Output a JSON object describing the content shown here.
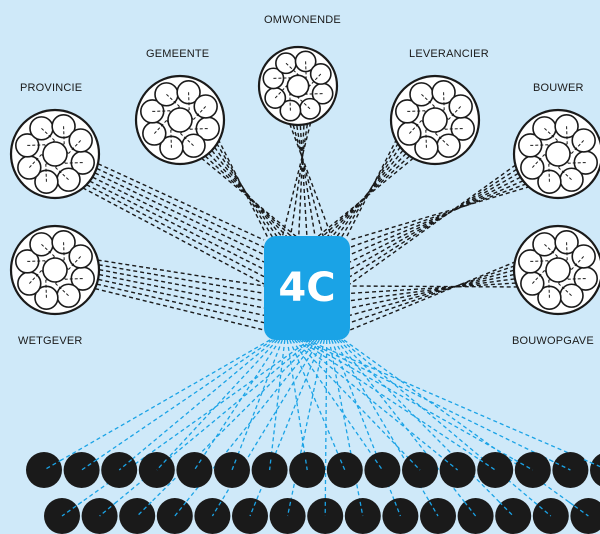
{
  "hub": {
    "label": "4C",
    "color": "#1aa3e6"
  },
  "background": "#cfe9f9",
  "stakeholders": [
    {
      "id": "omwonende",
      "label": "OMWONENDE"
    },
    {
      "id": "gemeente",
      "label": "GEMEENTE"
    },
    {
      "id": "leverancier",
      "label": "LEVERANCIER"
    },
    {
      "id": "provincie",
      "label": "PROVINCIE"
    },
    {
      "id": "bouwer",
      "label": "BOUWER"
    },
    {
      "id": "wetgever",
      "label": "WETGEVER"
    },
    {
      "id": "bouwopgave",
      "label": "BOUWOPGAVE"
    }
  ],
  "bottom_nodes": {
    "row1_count": 16,
    "row2_count": 15,
    "color": "#1a1a1a",
    "link_color": "#1aa3e6"
  }
}
